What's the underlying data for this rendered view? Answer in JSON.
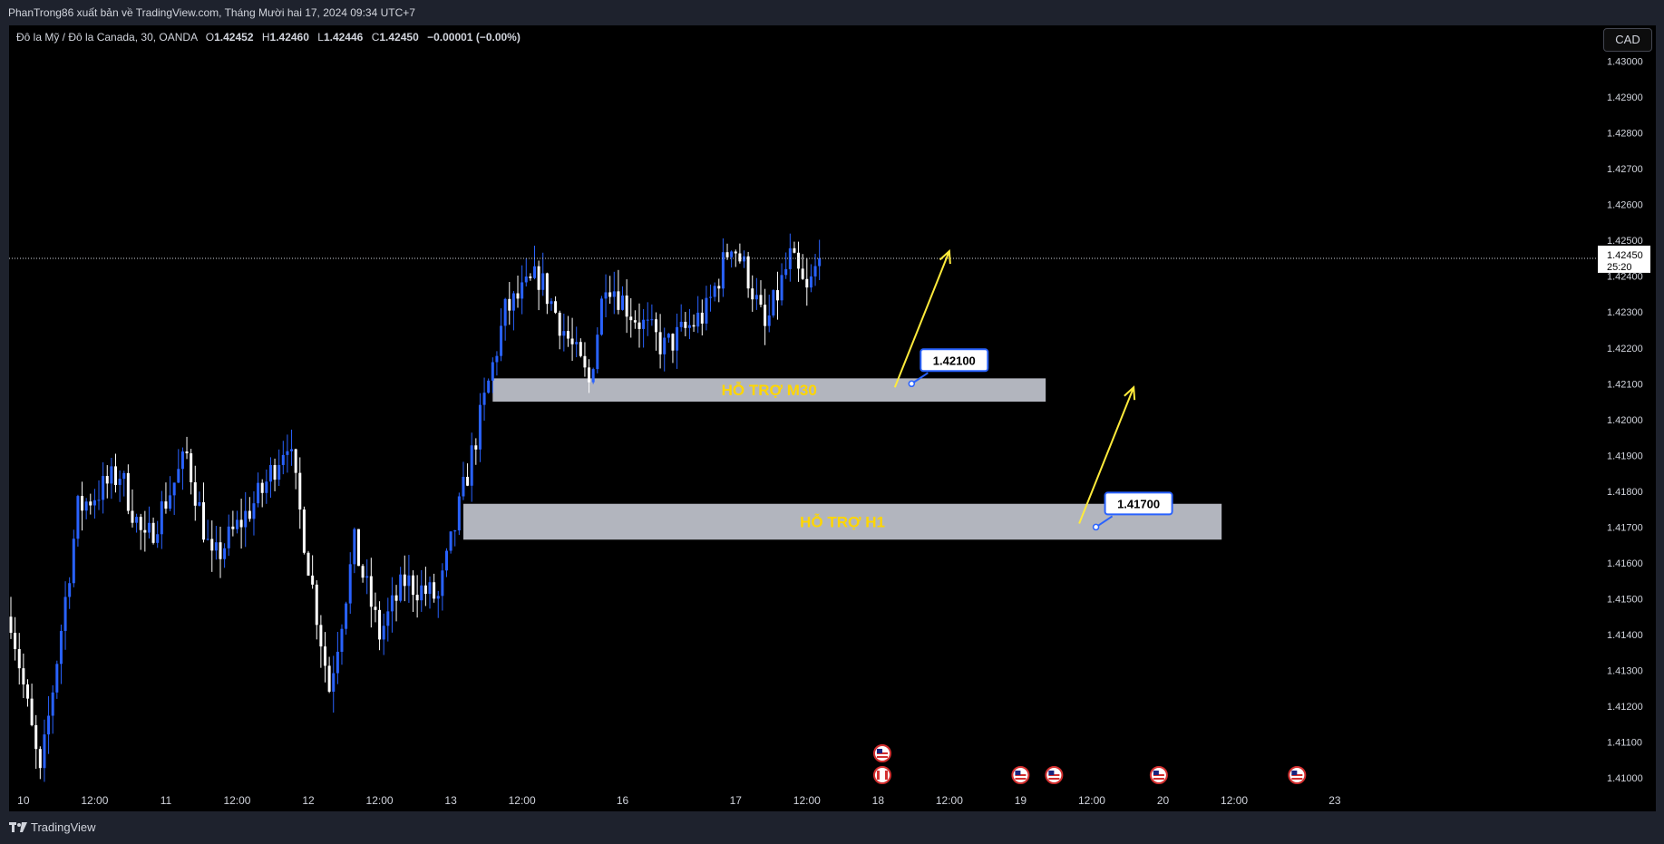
{
  "header": {
    "publisher_line": "PhanTrong86 xuất bản về TradingView.com, Tháng Mười hai 17, 2024 09:34 UTC+7"
  },
  "legend": {
    "symbol": "Đô la Mỹ / Đô la Canada, 30, OANDA",
    "o_label": "O",
    "o_value": "1.42452",
    "h_label": "H",
    "h_value": "1.42460",
    "l_label": "L",
    "l_value": "1.42446",
    "c_label": "C",
    "c_value": "1.42450",
    "change": "−0.00001 (−0.00%)"
  },
  "currency_button": "CAD",
  "footer": {
    "brand": "TradingView"
  },
  "colors": {
    "up": "#2962ff",
    "down": "#ffffff",
    "zone_fill": "#b2b5be",
    "zone_text": "#ffd600",
    "arrow": "#ffeb3b",
    "background": "#000000",
    "axis_text": "#d1d4dc"
  },
  "chart_data": {
    "type": "candlestick",
    "timeframe": "30",
    "y_ticks": [
      "1.43000",
      "1.42900",
      "1.42800",
      "1.42700",
      "1.42600",
      "1.42500",
      "1.42400",
      "1.42300",
      "1.42200",
      "1.42100",
      "1.42000",
      "1.41900",
      "1.41800",
      "1.41700",
      "1.41600",
      "1.41500",
      "1.41400",
      "1.41300",
      "1.41200",
      "1.41100",
      "1.41000"
    ],
    "ylim": [
      1.4097,
      1.431
    ],
    "x_ticks": [
      {
        "label": "10",
        "slot": 3
      },
      {
        "label": "12:00",
        "slot": 20
      },
      {
        "label": "11",
        "slot": 37
      },
      {
        "label": "12:00",
        "slot": 54
      },
      {
        "label": "12",
        "slot": 71
      },
      {
        "label": "12:00",
        "slot": 88
      },
      {
        "label": "13",
        "slot": 105
      },
      {
        "label": "12:00",
        "slot": 122
      },
      {
        "label": "16",
        "slot": 146
      },
      {
        "label": "17",
        "slot": 173
      },
      {
        "label": "12:00",
        "slot": 190
      },
      {
        "label": "18",
        "slot": 207
      },
      {
        "label": "12:00",
        "slot": 224
      },
      {
        "label": "19",
        "slot": 241
      },
      {
        "label": "12:00",
        "slot": 258
      },
      {
        "label": "20",
        "slot": 275
      },
      {
        "label": "12:00",
        "slot": 292
      },
      {
        "label": "23",
        "slot": 316
      }
    ],
    "anchors": [
      {
        "slot": 0,
        "price": 1.4145
      },
      {
        "slot": 7,
        "price": 1.41
      },
      {
        "slot": 16,
        "price": 1.4175
      },
      {
        "slot": 26,
        "price": 1.4185
      },
      {
        "slot": 32,
        "price": 1.4165
      },
      {
        "slot": 42,
        "price": 1.419
      },
      {
        "slot": 48,
        "price": 1.416
      },
      {
        "slot": 60,
        "price": 1.418
      },
      {
        "slot": 66,
        "price": 1.4195
      },
      {
        "slot": 76,
        "price": 1.4125
      },
      {
        "slot": 82,
        "price": 1.4165
      },
      {
        "slot": 88,
        "price": 1.414
      },
      {
        "slot": 94,
        "price": 1.4155
      },
      {
        "slot": 102,
        "price": 1.415
      },
      {
        "slot": 110,
        "price": 1.419
      },
      {
        "slot": 114,
        "price": 1.421
      },
      {
        "slot": 118,
        "price": 1.423
      },
      {
        "slot": 126,
        "price": 1.424
      },
      {
        "slot": 138,
        "price": 1.421
      },
      {
        "slot": 142,
        "price": 1.424
      },
      {
        "slot": 148,
        "price": 1.423
      },
      {
        "slot": 156,
        "price": 1.422
      },
      {
        "slot": 166,
        "price": 1.423
      },
      {
        "slot": 172,
        "price": 1.425
      },
      {
        "slot": 176,
        "price": 1.424
      },
      {
        "slot": 180,
        "price": 1.4225
      },
      {
        "slot": 186,
        "price": 1.4245
      },
      {
        "slot": 190,
        "price": 1.4235
      },
      {
        "slot": 193,
        "price": 1.4245
      }
    ],
    "last_slot": 193,
    "last_price": "1.42450",
    "countdown": "25:20",
    "zones": [
      {
        "label": "HỖ TRỢ M30",
        "top": 1.42115,
        "bottom": 1.4205,
        "slot_from": 115,
        "slot_to": 247
      },
      {
        "label": "HỖ TRỢ H1",
        "top": 1.41765,
        "bottom": 1.41665,
        "slot_from": 108,
        "slot_to": 289
      }
    ],
    "price_callouts": [
      {
        "text": "1.42100",
        "slot": 215,
        "price": 1.421
      },
      {
        "text": "1.41700",
        "slot": 259,
        "price": 1.417
      }
    ],
    "arrows": [
      {
        "slot_from": 211,
        "price_from": 1.4209,
        "slot_to": 224,
        "price_to": 1.4247
      },
      {
        "slot_from": 255,
        "price_from": 1.4171,
        "slot_to": 268,
        "price_to": 1.4209
      }
    ],
    "event_flags": [
      {
        "slot": 208,
        "kind": "us",
        "row": 1
      },
      {
        "slot": 208,
        "kind": "ca",
        "row": 2
      },
      {
        "slot": 241,
        "kind": "us",
        "row": 2
      },
      {
        "slot": 249,
        "kind": "us",
        "row": 2
      },
      {
        "slot": 274,
        "kind": "us",
        "row": 2
      },
      {
        "slot": 307,
        "kind": "us",
        "row": 2
      }
    ]
  }
}
